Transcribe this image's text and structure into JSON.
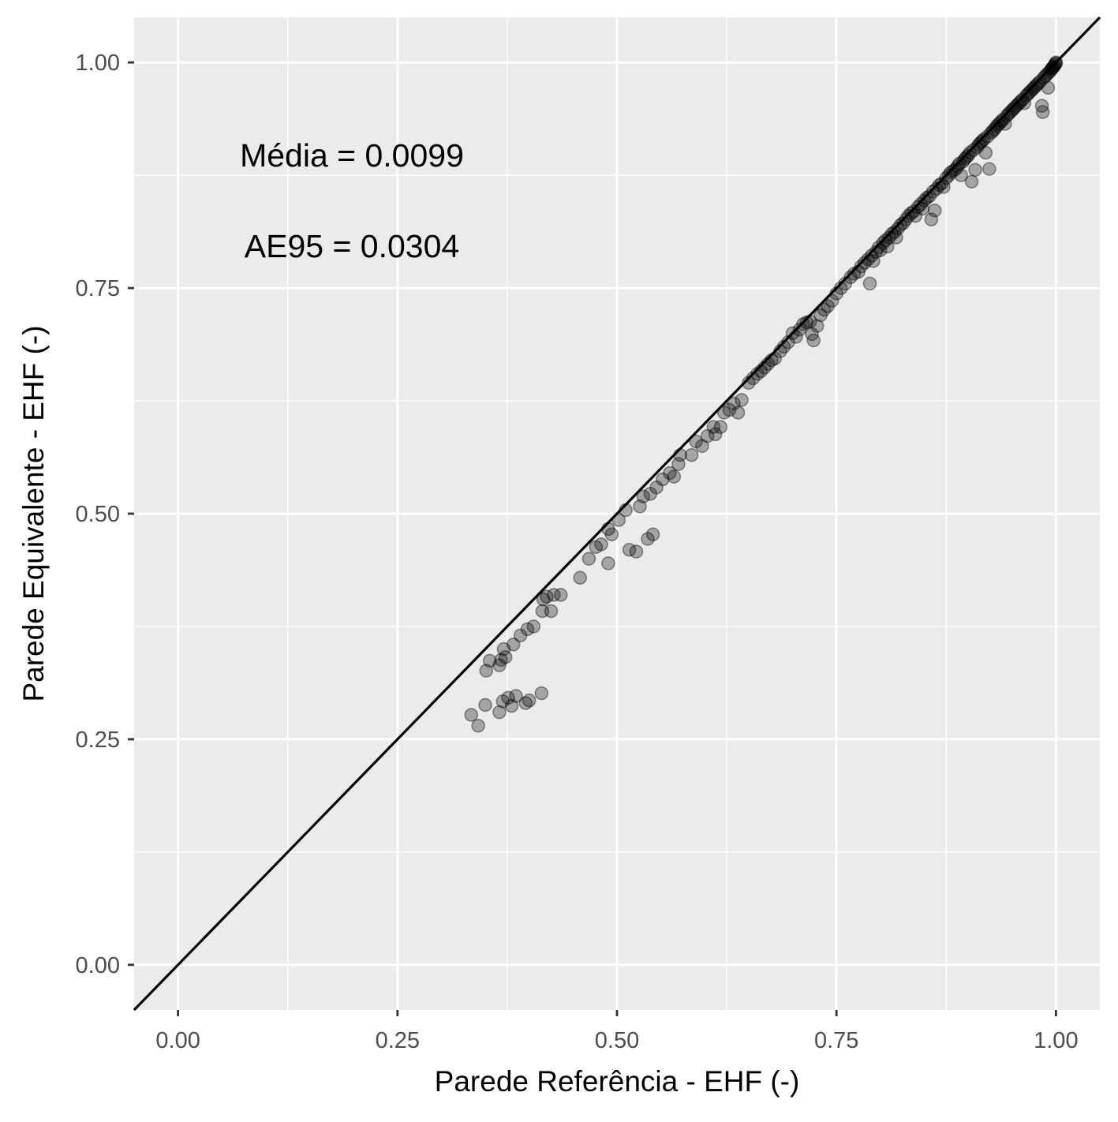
{
  "chart_data": {
    "type": "scatter",
    "xlabel": "Parede Referência - EHF (-)",
    "ylabel": "Parede Equivalente - EHF (-)",
    "xlim": [
      -0.05,
      1.05
    ],
    "ylim": [
      -0.05,
      1.05
    ],
    "x_ticks": [
      "0.00",
      "0.25",
      "0.50",
      "0.75",
      "1.00"
    ],
    "y_ticks": [
      "0.00",
      "0.25",
      "0.50",
      "0.75",
      "1.00"
    ],
    "grid": true,
    "reference_line": {
      "type": "identity",
      "slope": 1,
      "intercept": 0,
      "color": "#000000"
    },
    "annotations": [
      "Média = 0.0099",
      "AE95 = 0.0304"
    ],
    "point_color": "#000000",
    "point_alpha": 0.3,
    "panel_background": "#ebebeb",
    "grid_color": "#ffffff",
    "points": [
      [
        0.334,
        0.277
      ],
      [
        0.342,
        0.265
      ],
      [
        0.35,
        0.288
      ],
      [
        0.351,
        0.326
      ],
      [
        0.355,
        0.337
      ],
      [
        0.366,
        0.28
      ],
      [
        0.366,
        0.332
      ],
      [
        0.368,
        0.338
      ],
      [
        0.37,
        0.292
      ],
      [
        0.371,
        0.35
      ],
      [
        0.373,
        0.341
      ],
      [
        0.376,
        0.296
      ],
      [
        0.38,
        0.287
      ],
      [
        0.382,
        0.355
      ],
      [
        0.385,
        0.298
      ],
      [
        0.39,
        0.365
      ],
      [
        0.396,
        0.29
      ],
      [
        0.398,
        0.372
      ],
      [
        0.4,
        0.293
      ],
      [
        0.405,
        0.375
      ],
      [
        0.414,
        0.301
      ],
      [
        0.415,
        0.392
      ],
      [
        0.416,
        0.405
      ],
      [
        0.42,
        0.408
      ],
      [
        0.425,
        0.392
      ],
      [
        0.428,
        0.41
      ],
      [
        0.436,
        0.41
      ],
      [
        0.458,
        0.429
      ],
      [
        0.468,
        0.45
      ],
      [
        0.476,
        0.463
      ],
      [
        0.482,
        0.466
      ],
      [
        0.49,
        0.445
      ],
      [
        0.49,
        0.483
      ],
      [
        0.494,
        0.477
      ],
      [
        0.502,
        0.493
      ],
      [
        0.51,
        0.504
      ],
      [
        0.514,
        0.46
      ],
      [
        0.522,
        0.458
      ],
      [
        0.526,
        0.508
      ],
      [
        0.53,
        0.519
      ],
      [
        0.535,
        0.472
      ],
      [
        0.538,
        0.522
      ],
      [
        0.541,
        0.477
      ],
      [
        0.545,
        0.529
      ],
      [
        0.552,
        0.538
      ],
      [
        0.56,
        0.545
      ],
      [
        0.565,
        0.541
      ],
      [
        0.57,
        0.555
      ],
      [
        0.572,
        0.565
      ],
      [
        0.585,
        0.565
      ],
      [
        0.59,
        0.58
      ],
      [
        0.597,
        0.575
      ],
      [
        0.603,
        0.586
      ],
      [
        0.61,
        0.596
      ],
      [
        0.612,
        0.588
      ],
      [
        0.618,
        0.596
      ],
      [
        0.622,
        0.612
      ],
      [
        0.628,
        0.615
      ],
      [
        0.633,
        0.622
      ],
      [
        0.638,
        0.612
      ],
      [
        0.642,
        0.626
      ],
      [
        0.65,
        0.645
      ],
      [
        0.655,
        0.65
      ],
      [
        0.66,
        0.655
      ],
      [
        0.664,
        0.658
      ],
      [
        0.668,
        0.662
      ],
      [
        0.672,
        0.666
      ],
      [
        0.676,
        0.67
      ],
      [
        0.68,
        0.672
      ],
      [
        0.686,
        0.68
      ],
      [
        0.69,
        0.685
      ],
      [
        0.695,
        0.69
      ],
      [
        0.7,
        0.7
      ],
      [
        0.704,
        0.696
      ],
      [
        0.708,
        0.704
      ],
      [
        0.712,
        0.71
      ],
      [
        0.716,
        0.712
      ],
      [
        0.72,
        0.713
      ],
      [
        0.722,
        0.699
      ],
      [
        0.724,
        0.692
      ],
      [
        0.728,
        0.708
      ],
      [
        0.732,
        0.72
      ],
      [
        0.736,
        0.726
      ],
      [
        0.74,
        0.73
      ],
      [
        0.745,
        0.736
      ],
      [
        0.75,
        0.744
      ],
      [
        0.755,
        0.75
      ],
      [
        0.76,
        0.755
      ],
      [
        0.766,
        0.762
      ],
      [
        0.77,
        0.766
      ],
      [
        0.775,
        0.768
      ],
      [
        0.778,
        0.774
      ],
      [
        0.782,
        0.778
      ],
      [
        0.786,
        0.782
      ],
      [
        0.788,
        0.755
      ],
      [
        0.79,
        0.786
      ],
      [
        0.792,
        0.78
      ],
      [
        0.795,
        0.79
      ],
      [
        0.798,
        0.795
      ],
      [
        0.8,
        0.792
      ],
      [
        0.803,
        0.8
      ],
      [
        0.806,
        0.803
      ],
      [
        0.808,
        0.796
      ],
      [
        0.81,
        0.806
      ],
      [
        0.813,
        0.81
      ],
      [
        0.816,
        0.812
      ],
      [
        0.818,
        0.806
      ],
      [
        0.82,
        0.816
      ],
      [
        0.823,
        0.82
      ],
      [
        0.826,
        0.822
      ],
      [
        0.829,
        0.826
      ],
      [
        0.832,
        0.83
      ],
      [
        0.835,
        0.833
      ],
      [
        0.838,
        0.835
      ],
      [
        0.84,
        0.83
      ],
      [
        0.843,
        0.84
      ],
      [
        0.846,
        0.843
      ],
      [
        0.848,
        0.838
      ],
      [
        0.85,
        0.847
      ],
      [
        0.853,
        0.85
      ],
      [
        0.856,
        0.852
      ],
      [
        0.858,
        0.826
      ],
      [
        0.86,
        0.857
      ],
      [
        0.862,
        0.836
      ],
      [
        0.864,
        0.86
      ],
      [
        0.867,
        0.864
      ],
      [
        0.87,
        0.866
      ],
      [
        0.872,
        0.862
      ],
      [
        0.875,
        0.872
      ],
      [
        0.878,
        0.875
      ],
      [
        0.88,
        0.878
      ],
      [
        0.883,
        0.88
      ],
      [
        0.886,
        0.882
      ],
      [
        0.888,
        0.885
      ],
      [
        0.89,
        0.888
      ],
      [
        0.892,
        0.875
      ],
      [
        0.894,
        0.89
      ],
      [
        0.896,
        0.893
      ],
      [
        0.898,
        0.895
      ],
      [
        0.9,
        0.897
      ],
      [
        0.902,
        0.9
      ],
      [
        0.904,
        0.868
      ],
      [
        0.906,
        0.903
      ],
      [
        0.908,
        0.881
      ],
      [
        0.91,
        0.906
      ],
      [
        0.912,
        0.909
      ],
      [
        0.914,
        0.911
      ],
      [
        0.916,
        0.913
      ],
      [
        0.918,
        0.915
      ],
      [
        0.92,
        0.9
      ],
      [
        0.922,
        0.918
      ],
      [
        0.924,
        0.882
      ],
      [
        0.926,
        0.922
      ],
      [
        0.928,
        0.924
      ],
      [
        0.93,
        0.926
      ],
      [
        0.932,
        0.929
      ],
      [
        0.934,
        0.931
      ],
      [
        0.936,
        0.933
      ],
      [
        0.938,
        0.935
      ],
      [
        0.94,
        0.937
      ],
      [
        0.942,
        0.932
      ],
      [
        0.944,
        0.941
      ],
      [
        0.946,
        0.943
      ],
      [
        0.948,
        0.945
      ],
      [
        0.95,
        0.947
      ],
      [
        0.952,
        0.949
      ],
      [
        0.954,
        0.951
      ],
      [
        0.956,
        0.953
      ],
      [
        0.958,
        0.955
      ],
      [
        0.96,
        0.957
      ],
      [
        0.962,
        0.959
      ],
      [
        0.964,
        0.955
      ],
      [
        0.966,
        0.963
      ],
      [
        0.968,
        0.965
      ],
      [
        0.97,
        0.967
      ],
      [
        0.972,
        0.969
      ],
      [
        0.974,
        0.971
      ],
      [
        0.976,
        0.973
      ],
      [
        0.978,
        0.975
      ],
      [
        0.98,
        0.977
      ],
      [
        0.982,
        0.979
      ],
      [
        0.984,
        0.952
      ],
      [
        0.985,
        0.945
      ],
      [
        0.986,
        0.983
      ],
      [
        0.988,
        0.985
      ],
      [
        0.99,
        0.987
      ],
      [
        0.991,
        0.972
      ],
      [
        0.992,
        0.989
      ],
      [
        0.994,
        0.991
      ],
      [
        0.995,
        0.993
      ],
      [
        0.996,
        0.994
      ],
      [
        0.997,
        0.995
      ],
      [
        0.998,
        0.996
      ],
      [
        0.999,
        0.998
      ],
      [
        1.0,
        1.0
      ],
      [
        1.0,
        0.999
      ]
    ]
  }
}
